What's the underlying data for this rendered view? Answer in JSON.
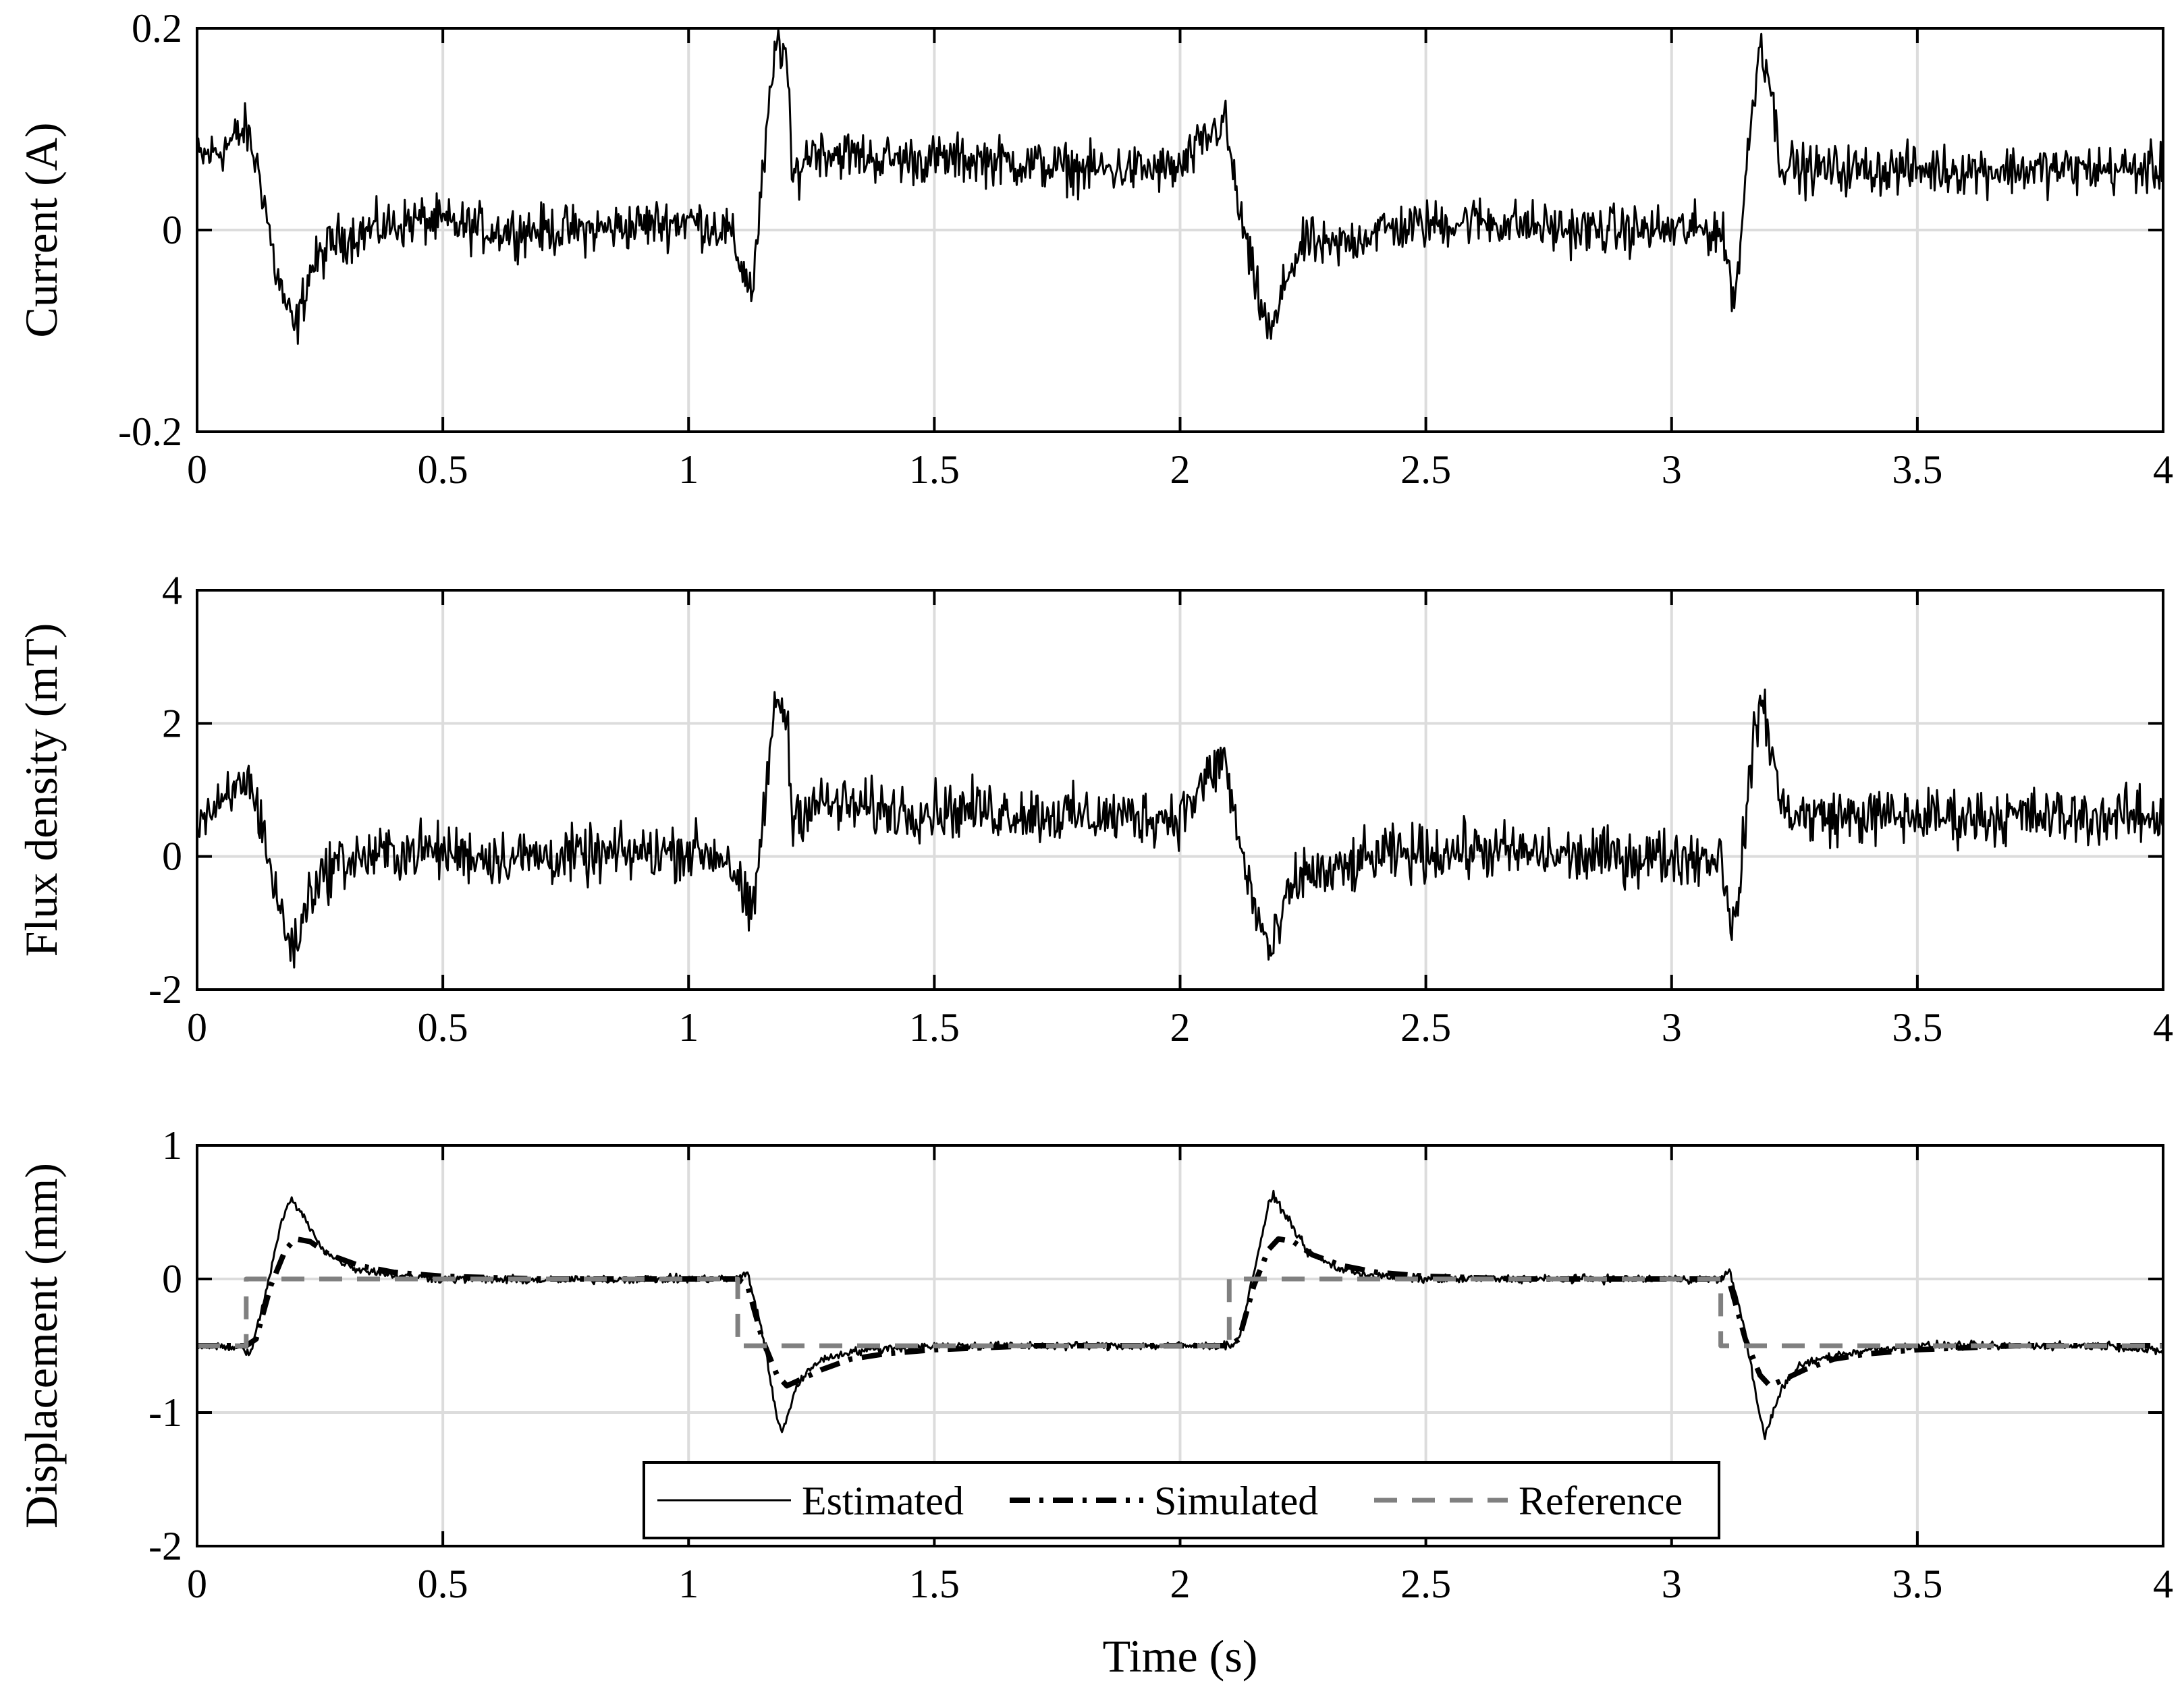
{
  "chart_data": [
    {
      "type": "line",
      "ylabel": "Current (A)",
      "xlabel": "",
      "xlim": [
        0,
        4
      ],
      "ylim": [
        -0.2,
        0.2
      ],
      "xticks": [
        0,
        0.5,
        1,
        1.5,
        2,
        2.5,
        3,
        3.5,
        4
      ],
      "xtick_labels": [
        "0",
        "0.5",
        "1",
        "1.5",
        "2",
        "2.5",
        "3",
        "3.5",
        "4"
      ],
      "yticks": [
        -0.2,
        0,
        0.2
      ],
      "ytick_labels": [
        "-0.2",
        "0",
        "0.2"
      ],
      "grid": true,
      "series": [
        {
          "color": "#000000",
          "style": "solid",
          "x": [
            0,
            0.05,
            0.1,
            0.13,
            0.16,
            0.19,
            0.2,
            0.23,
            0.28,
            0.35,
            0.45,
            0.6,
            0.8,
            1.0,
            1.08,
            1.12,
            1.13,
            1.16,
            1.18,
            1.2,
            1.21,
            1.25,
            1.4,
            1.6,
            1.8,
            2.0,
            2.09,
            2.12,
            2.15,
            2.18,
            2.19,
            2.22,
            2.26,
            2.3,
            2.4,
            2.6,
            2.8,
            3.0,
            3.1,
            3.13,
            3.15,
            3.18,
            3.2,
            3.22,
            3.26,
            3.4,
            3.6,
            3.8,
            4.0
          ],
          "y": [
            0.07,
            0.08,
            0.1,
            0.05,
            -0.04,
            -0.09,
            -0.1,
            -0.04,
            -0.01,
            0.0,
            0.01,
            0.0,
            0.0,
            0.01,
            0.0,
            -0.05,
            -0.06,
            0.1,
            0.19,
            0.17,
            0.05,
            0.08,
            0.07,
            0.07,
            0.06,
            0.06,
            0.11,
            0.02,
            -0.05,
            -0.1,
            -0.1,
            -0.04,
            -0.01,
            -0.02,
            0.0,
            0.01,
            0.0,
            0.0,
            0.0,
            -0.07,
            0.05,
            0.19,
            0.15,
            0.07,
            0.06,
            0.06,
            0.06,
            0.06,
            0.06
          ],
          "noise": 0.02
        }
      ]
    },
    {
      "type": "line",
      "ylabel": "Flux density (mT)",
      "xlabel": "",
      "xlim": [
        0,
        4
      ],
      "ylim": [
        -2,
        4
      ],
      "xticks": [
        0,
        0.5,
        1,
        1.5,
        2,
        2.5,
        3,
        3.5,
        4
      ],
      "xtick_labels": [
        "0",
        "0.5",
        "1",
        "1.5",
        "2",
        "2.5",
        "3",
        "3.5",
        "4"
      ],
      "yticks": [
        -2,
        0,
        2,
        4
      ],
      "ytick_labels": [
        "-2",
        "0",
        "2",
        "4"
      ],
      "grid": true,
      "series": [
        {
          "color": "#000000",
          "style": "solid",
          "x": [
            0,
            0.05,
            0.1,
            0.13,
            0.16,
            0.19,
            0.2,
            0.23,
            0.28,
            0.35,
            0.45,
            0.6,
            0.8,
            1.0,
            1.08,
            1.12,
            1.13,
            1.16,
            1.18,
            1.2,
            1.21,
            1.25,
            1.4,
            1.6,
            1.8,
            2.0,
            2.09,
            2.12,
            2.15,
            2.18,
            2.19,
            2.22,
            2.26,
            2.3,
            2.4,
            2.6,
            2.8,
            3.0,
            3.1,
            3.13,
            3.15,
            3.18,
            3.2,
            3.22,
            3.26,
            3.4,
            3.6,
            3.8,
            4.0
          ],
          "y": [
            0.6,
            0.7,
            1.2,
            0.6,
            -0.6,
            -1.3,
            -1.4,
            -0.5,
            -0.1,
            0.0,
            0.1,
            0.0,
            0.0,
            0.1,
            0.0,
            -0.8,
            -1.0,
            1.2,
            2.4,
            2.1,
            0.6,
            0.8,
            0.7,
            0.7,
            0.6,
            0.6,
            1.5,
            0.2,
            -0.7,
            -1.4,
            -1.4,
            -0.6,
            -0.2,
            -0.3,
            0.0,
            0.1,
            0.0,
            0.0,
            0.0,
            -1.2,
            0.6,
            2.4,
            1.8,
            0.8,
            0.6,
            0.6,
            0.6,
            0.6,
            0.6
          ],
          "noise": 0.35
        }
      ]
    },
    {
      "type": "line",
      "ylabel": "Displacement (mm)",
      "xlabel": "Time (s)",
      "xlim": [
        0,
        4
      ],
      "ylim": [
        -2,
        1
      ],
      "xticks": [
        0,
        0.5,
        1,
        1.5,
        2,
        2.5,
        3,
        3.5,
        4
      ],
      "xtick_labels": [
        "0",
        "0.5",
        "1",
        "1.5",
        "2",
        "2.5",
        "3",
        "3.5",
        "4"
      ],
      "yticks": [
        -2,
        -1,
        0,
        1
      ],
      "ytick_labels": [
        "-2",
        "-1",
        "0",
        "1"
      ],
      "grid": true,
      "legend": {
        "position": "bottom-center",
        "boxed": true
      },
      "series": [
        {
          "name": "Estimated",
          "color": "#000000",
          "style": "solid",
          "x": [
            0,
            0.09,
            0.11,
            0.14,
            0.17,
            0.19,
            0.22,
            0.26,
            0.32,
            0.4,
            0.5,
            0.7,
            0.9,
            1.1,
            1.12,
            1.15,
            1.18,
            1.19,
            1.22,
            1.26,
            1.32,
            1.4,
            1.5,
            1.7,
            1.9,
            2.1,
            2.12,
            2.15,
            2.18,
            2.19,
            2.22,
            2.26,
            2.32,
            2.4,
            2.5,
            2.7,
            2.9,
            3.1,
            3.12,
            3.15,
            3.18,
            3.19,
            3.22,
            3.26,
            3.32,
            3.4,
            3.5,
            3.7,
            3.9,
            4.0
          ],
          "y": [
            -0.5,
            -0.52,
            -0.55,
            -0.1,
            0.4,
            0.6,
            0.45,
            0.2,
            0.08,
            0.03,
            0.0,
            -0.01,
            0.0,
            0.0,
            0.05,
            -0.4,
            -1.05,
            -1.15,
            -0.8,
            -0.62,
            -0.55,
            -0.52,
            -0.5,
            -0.5,
            -0.5,
            -0.5,
            -0.45,
            0.05,
            0.55,
            0.62,
            0.45,
            0.2,
            0.08,
            0.02,
            0.0,
            0.0,
            0.0,
            0.0,
            0.05,
            -0.4,
            -1.05,
            -1.17,
            -0.85,
            -0.65,
            -0.58,
            -0.53,
            -0.5,
            -0.5,
            -0.5,
            -0.55
          ],
          "noise": 0.025
        },
        {
          "name": "Simulated",
          "color": "#000000",
          "style": "dash-dot",
          "x": [
            0,
            0.1,
            0.12,
            0.15,
            0.18,
            0.2,
            0.23,
            0.27,
            0.33,
            0.4,
            0.5,
            0.7,
            1.0,
            1.1,
            1.12,
            1.15,
            1.18,
            1.2,
            1.23,
            1.27,
            1.33,
            1.4,
            1.5,
            1.7,
            2.0,
            2.1,
            2.12,
            2.15,
            2.18,
            2.2,
            2.23,
            2.27,
            2.33,
            2.4,
            2.5,
            2.7,
            3.0,
            3.1,
            3.12,
            3.15,
            3.18,
            3.2,
            3.23,
            3.27,
            3.33,
            3.4,
            3.5,
            3.7,
            4.0
          ],
          "y": [
            -0.5,
            -0.5,
            -0.45,
            -0.05,
            0.22,
            0.3,
            0.28,
            0.18,
            0.1,
            0.05,
            0.02,
            0.0,
            0.0,
            0.0,
            -0.05,
            -0.45,
            -0.72,
            -0.8,
            -0.75,
            -0.68,
            -0.6,
            -0.56,
            -0.53,
            -0.5,
            -0.5,
            -0.5,
            -0.45,
            -0.05,
            0.22,
            0.3,
            0.28,
            0.18,
            0.1,
            0.05,
            0.02,
            0.0,
            0.0,
            0.0,
            -0.05,
            -0.45,
            -0.72,
            -0.8,
            -0.75,
            -0.68,
            -0.6,
            -0.56,
            -0.53,
            -0.5,
            -0.5
          ],
          "noise": 0
        },
        {
          "name": "Reference",
          "color": "#808080",
          "style": "dashed",
          "x": [
            0,
            0.1,
            0.1,
            1.1,
            1.1,
            2.1,
            2.1,
            3.1,
            3.1,
            4.0
          ],
          "y": [
            -0.5,
            -0.5,
            0,
            0,
            -0.5,
            -0.5,
            0,
            0,
            -0.5,
            -0.5
          ],
          "noise": 0
        }
      ]
    }
  ]
}
